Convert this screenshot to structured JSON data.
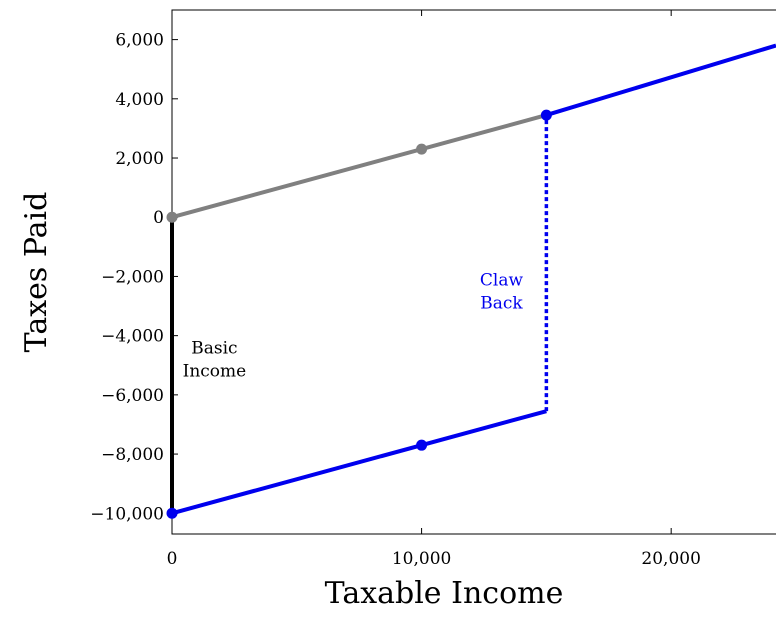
{
  "chart_data": {
    "type": "line",
    "title": "",
    "xlabel": "Taxable Income",
    "ylabel": "Taxes Paid",
    "xlim": [
      0,
      24200
    ],
    "ylim": [
      -10700,
      7000
    ],
    "x_ticks": [
      0,
      10000,
      20000
    ],
    "x_tick_labels": [
      "0",
      "10,000",
      "20,000"
    ],
    "y_ticks": [
      -10000,
      -8000,
      -6000,
      -4000,
      -2000,
      0,
      2000,
      4000,
      6000
    ],
    "y_tick_labels": [
      "−10,000",
      "−8,000",
      "−6,000",
      "−4,000",
      "−2,000",
      "0",
      "2,000",
      "4,000",
      "6,000"
    ],
    "grid": false,
    "series": [
      {
        "color": "#808080",
        "style": "solid",
        "x": [
          0,
          15000
        ],
        "y": [
          0,
          3450
        ],
        "markers": [
          {
            "x": 0,
            "y": 0
          },
          {
            "x": 10000,
            "y": 2300
          }
        ]
      },
      {
        "color": "#000000",
        "style": "solid",
        "x": [
          0,
          0
        ],
        "y": [
          -10000,
          0
        ],
        "markers": []
      },
      {
        "color": "#0000ee",
        "style": "solid",
        "x": [
          0,
          15000
        ],
        "y": [
          -10000,
          -6550
        ],
        "markers": [
          {
            "x": 0,
            "y": -10000
          },
          {
            "x": 10000,
            "y": -7700
          }
        ]
      },
      {
        "color": "#0000ee",
        "style": "dotted",
        "x": [
          15000,
          15000
        ],
        "y": [
          -6550,
          3450
        ],
        "markers": []
      },
      {
        "color": "#0000ee",
        "style": "solid",
        "x": [
          15000,
          24200
        ],
        "y": [
          3450,
          5800
        ],
        "markers": [
          {
            "x": 15000,
            "y": 3450
          }
        ]
      }
    ],
    "annotations": [
      {
        "lines": [
          "Basic",
          "Income"
        ],
        "x": 1700,
        "y": -4600,
        "color": "#000000"
      },
      {
        "lines": [
          "Claw",
          "Back"
        ],
        "x": 13200,
        "y": -2300,
        "color": "#0000ee"
      }
    ]
  }
}
